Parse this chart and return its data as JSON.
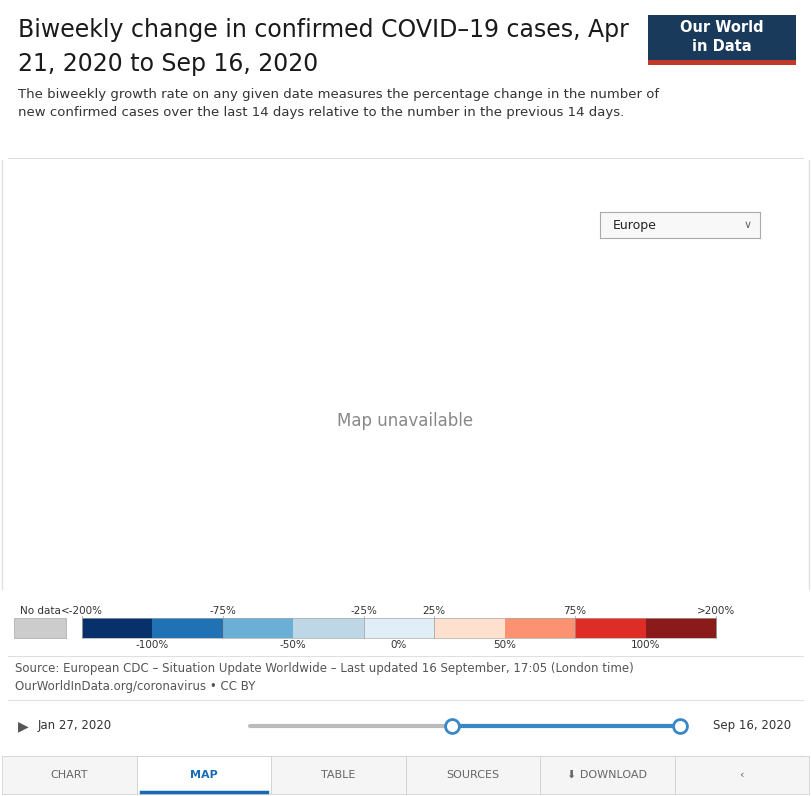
{
  "title_line1": "Biweekly change in confirmed COVID–19 cases, Apr",
  "title_line2": "21, 2020 to Sep 16, 2020",
  "subtitle": "The biweekly growth rate on any given date measures the percentage change in the number of\nnew confirmed cases over the last 14 days relative to the number in the previous 14 days.",
  "logo_text": "Our World\nin Data",
  "dropdown_label": "Europe",
  "no_data_label": "No data",
  "source_text": "Source: European CDC – Situation Update Worldwide – Last updated 16 September, 17:05 (London time)\nOurWorldInData.org/coronavirus • CC BY",
  "slider_left": "Jan 27, 2020",
  "slider_right": "Sep 16, 2020",
  "nav_tabs": [
    "CHART",
    "MAP",
    "TABLE",
    "SOURCES",
    "⬇ DOWNLOAD",
    "‹"
  ],
  "active_tab": "MAP",
  "bg_color": "#ffffff",
  "border_color": "#e0e0e0",
  "logo_bg": "#1a3a5c",
  "logo_accent": "#c0392b",
  "slider_blue": "#3a87c8",
  "slider_gray": "#bbbbbb",
  "tab_active_color": "#1a6bb5",
  "tab_underline_color": "#1a6bb5",
  "map_ocean": "#c8dff0",
  "map_land_default": "#ede8e0",
  "title_fontsize": 17,
  "subtitle_fontsize": 9.5,
  "source_fontsize": 8.5,
  "colorbar_colors": [
    "#08306b",
    "#2171b5",
    "#6baed6",
    "#bdd7e7",
    "#e0eef8",
    "#fde0ce",
    "#fc9272",
    "#de2d26",
    "#8b1a1a"
  ],
  "country_colors": {
    "Norway": "#67000d",
    "Sweden": "#8b1a1a",
    "Finland": "#cb181d",
    "Denmark": "#cb181d",
    "Estonia": "#e87060",
    "Latvia": "#f0b090",
    "Lithuania": "#f5d5c0",
    "Poland": "#6baed6",
    "Germany": "#b22222",
    "Netherlands": "#b22222",
    "Belgium": "#f5a890",
    "United Kingdom": "#67000d",
    "Ireland": "#b22222",
    "France": "#e06050",
    "Spain": "#f5d8c8",
    "Portugal": "#b03020",
    "Italy": "#f5e0d0",
    "Switzerland": "#c03030",
    "Austria": "#8b1a1a",
    "Czechia": "#8b1a1a",
    "Slovakia": "#d04040",
    "Hungary": "#8b1a1a",
    "Romania": "#c03030",
    "Bulgaria": "#e8b0a0",
    "Greece": "#f5d5c0",
    "Croatia": "#e07060",
    "Slovenia": "#c03030",
    "Serbia": "#c03030",
    "Bosnia and Herz.": "#e87060",
    "Montenegro": "#e07060",
    "Albania": "#f0d0c0",
    "North Macedonia": "#e8a090",
    "Moldova": "#f0c0a0",
    "Ukraine": "#f5d0b0",
    "Belarus": "#f5d0b0",
    "Russia": "#f5c8a8",
    "Iceland": "#4292c6",
    "Luxembourg": "#c03030",
    "Cyprus": "#4292c6",
    "Malta": "#e07060",
    "Kosovo": "#e8a090",
    "Turkey": "#f5c8a8",
    "Kazakhstan": "#f5c8a8"
  },
  "fig_width": 8.11,
  "fig_height": 7.96,
  "dpi": 100
}
